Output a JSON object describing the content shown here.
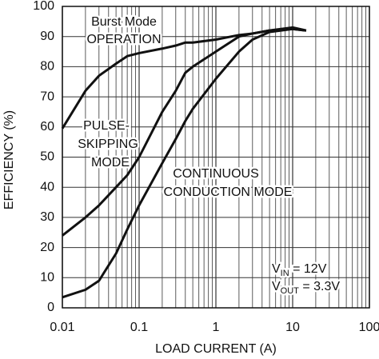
{
  "chart_data": {
    "type": "line",
    "xlabel": "LOAD CURRENT (A)",
    "ylabel": "EFFICIENCY (%)",
    "log_x": true,
    "grid": true,
    "minor_grid": true,
    "xlim": [
      0.01,
      100
    ],
    "xticks": [
      0.01,
      0.1,
      1,
      10,
      100
    ],
    "ylim": [
      0,
      100
    ],
    "yticks": [
      0,
      10,
      20,
      30,
      40,
      50,
      60,
      70,
      80,
      90,
      100
    ],
    "x": [
      0.01,
      0.02,
      0.03,
      0.05,
      0.07,
      0.1,
      0.2,
      0.3,
      0.4,
      0.5,
      1,
      2,
      3,
      5,
      10,
      15
    ],
    "series": [
      {
        "name": "Burst Mode OPERATION",
        "color": "#111111",
        "values": [
          59.5,
          72,
          77,
          81,
          83.5,
          84.5,
          86,
          87,
          88,
          88,
          89,
          90.5,
          91,
          92,
          92.5,
          92
        ]
      },
      {
        "name": "PULSE-SKIPPING MODE",
        "color": "#111111",
        "values": [
          24,
          30,
          34,
          40,
          44,
          50,
          65,
          72,
          78,
          80,
          85,
          90,
          91,
          92,
          93,
          92
        ]
      },
      {
        "name": "CONTINUOUS CONDUCTION MODE",
        "color": "#111111",
        "values": [
          3.5,
          6,
          9,
          18,
          26,
          34,
          48,
          56,
          62,
          66,
          76,
          85,
          89,
          91.5,
          92.5,
          92
        ]
      }
    ],
    "annotations": [
      "Burst Mode",
      "OPERATION",
      "PULSE-",
      "SKIPPING",
      "MODE",
      "CONTINUOUS",
      "CONDUCTION MODE",
      [
        "V",
        "IN",
        " = 12V"
      ],
      [
        "V",
        "OUT",
        " = 3.3V"
      ]
    ]
  }
}
